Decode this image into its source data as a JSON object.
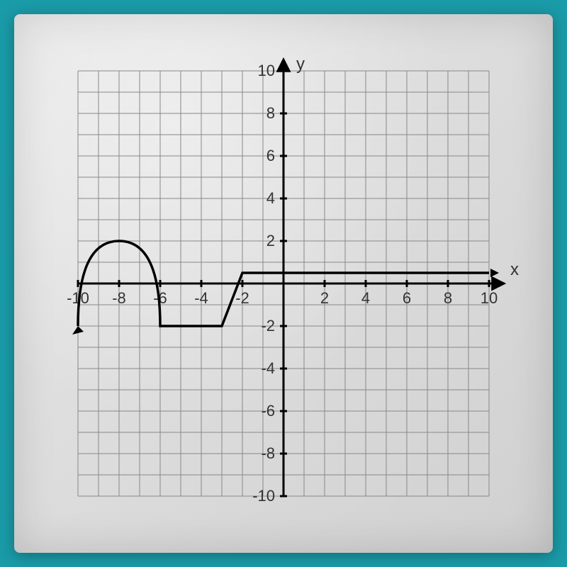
{
  "chart": {
    "type": "line",
    "background_color": "#e8e8e8",
    "grid_color": "#888888",
    "grid_minor_color": "#999999",
    "axis_color": "#000000",
    "curve_color": "#000000",
    "xlim": [
      -10,
      10
    ],
    "ylim": [
      -10,
      10
    ],
    "x_tick_step": 2,
    "y_tick_step": 2,
    "x_ticks": [
      -10,
      -8,
      -6,
      -4,
      -2,
      2,
      4,
      6,
      8,
      10
    ],
    "y_ticks": [
      -10,
      -8,
      -6,
      -4,
      -2,
      2,
      4,
      6,
      8,
      10
    ],
    "x_label": "x",
    "y_label": "y",
    "label_fontsize": 24,
    "tick_fontsize": 22,
    "axis_width": 3,
    "curve_width": 3.5,
    "grid_width": 1,
    "curve_points": [
      [
        -10,
        -2
      ],
      [
        -9.8,
        -1
      ],
      [
        -9.5,
        0
      ],
      [
        -9,
        1.3
      ],
      [
        -8.5,
        1.85
      ],
      [
        -8,
        2
      ],
      [
        -7.5,
        1.85
      ],
      [
        -7,
        1.3
      ],
      [
        -6.5,
        0
      ],
      [
        -6.2,
        -1
      ],
      [
        -6,
        -2
      ],
      [
        -3,
        -2
      ],
      [
        -2,
        0.5
      ],
      [
        10,
        0.5
      ]
    ],
    "arrow_start": true,
    "arrow_end_x": true,
    "arrow_end_y": true
  }
}
